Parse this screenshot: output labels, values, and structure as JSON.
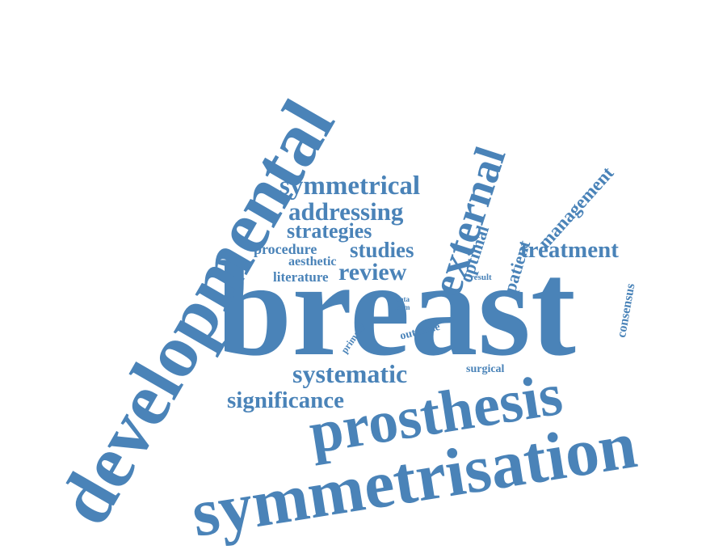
{
  "word_color": "#4a83b8",
  "background": "#ffffff",
  "words": [
    {
      "key": "breast",
      "text": "breast"
    },
    {
      "key": "developmental",
      "text": "developmental"
    },
    {
      "key": "symmetrisation",
      "text": "symmetrisation"
    },
    {
      "key": "prosthesis",
      "text": "prosthesis"
    },
    {
      "key": "external",
      "text": "external"
    },
    {
      "key": "symmetrical",
      "text": "symmetrical"
    },
    {
      "key": "addressing",
      "text": "addressing"
    },
    {
      "key": "strategies",
      "text": "strategies"
    },
    {
      "key": "studies",
      "text": "studies"
    },
    {
      "key": "procedure",
      "text": "procedure"
    },
    {
      "key": "aesthetic",
      "text": "aesthetic"
    },
    {
      "key": "literature",
      "text": "literature"
    },
    {
      "key": "review",
      "text": "review"
    },
    {
      "key": "systematic",
      "text": "systematic"
    },
    {
      "key": "significance",
      "text": "significance"
    },
    {
      "key": "treatment",
      "text": "treatment"
    },
    {
      "key": "management",
      "text": "management"
    },
    {
      "key": "patient",
      "text": "patient"
    },
    {
      "key": "optimal",
      "text": "optimal"
    },
    {
      "key": "consensus",
      "text": "consensus"
    },
    {
      "key": "result",
      "text": "result"
    },
    {
      "key": "data",
      "text": "data"
    },
    {
      "key": "term",
      "text": "term"
    },
    {
      "key": "primary",
      "text": "primary"
    },
    {
      "key": "outcome",
      "text": "outcome"
    },
    {
      "key": "surgical",
      "text": "surgical"
    }
  ]
}
